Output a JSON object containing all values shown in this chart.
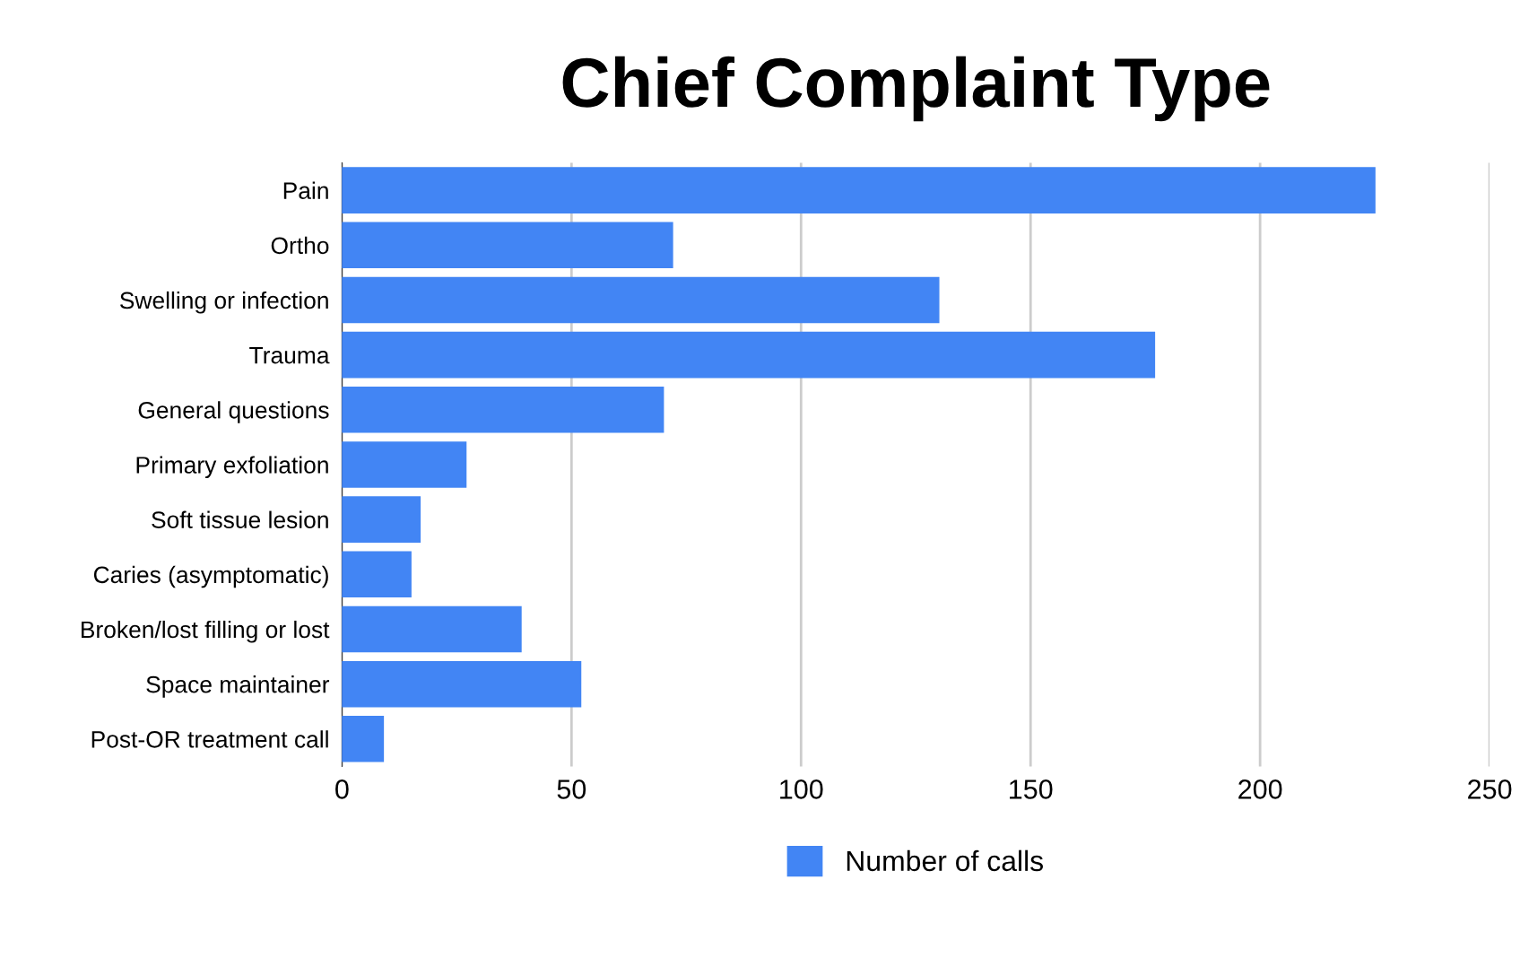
{
  "chart_data": {
    "type": "bar",
    "orientation": "horizontal",
    "title": "Chief Complaint Type",
    "categories": [
      "Pain",
      "Ortho",
      "Swelling or infection",
      "Trauma",
      "General questions",
      "Primary exfoliation",
      "Soft tissue lesion",
      "Caries (asymptomatic)",
      "Broken/lost filling or lost",
      "Space maintainer",
      "Post-OR treatment call"
    ],
    "series": [
      {
        "name": "Number of calls",
        "color": "#4285f4",
        "values": [
          225,
          72,
          130,
          177,
          70,
          27,
          17,
          15,
          39,
          52,
          9
        ]
      }
    ],
    "xlim": [
      0,
      250
    ],
    "xticks": [
      0,
      50,
      100,
      150,
      200,
      250
    ],
    "grid": "x",
    "legend": "bottom"
  }
}
